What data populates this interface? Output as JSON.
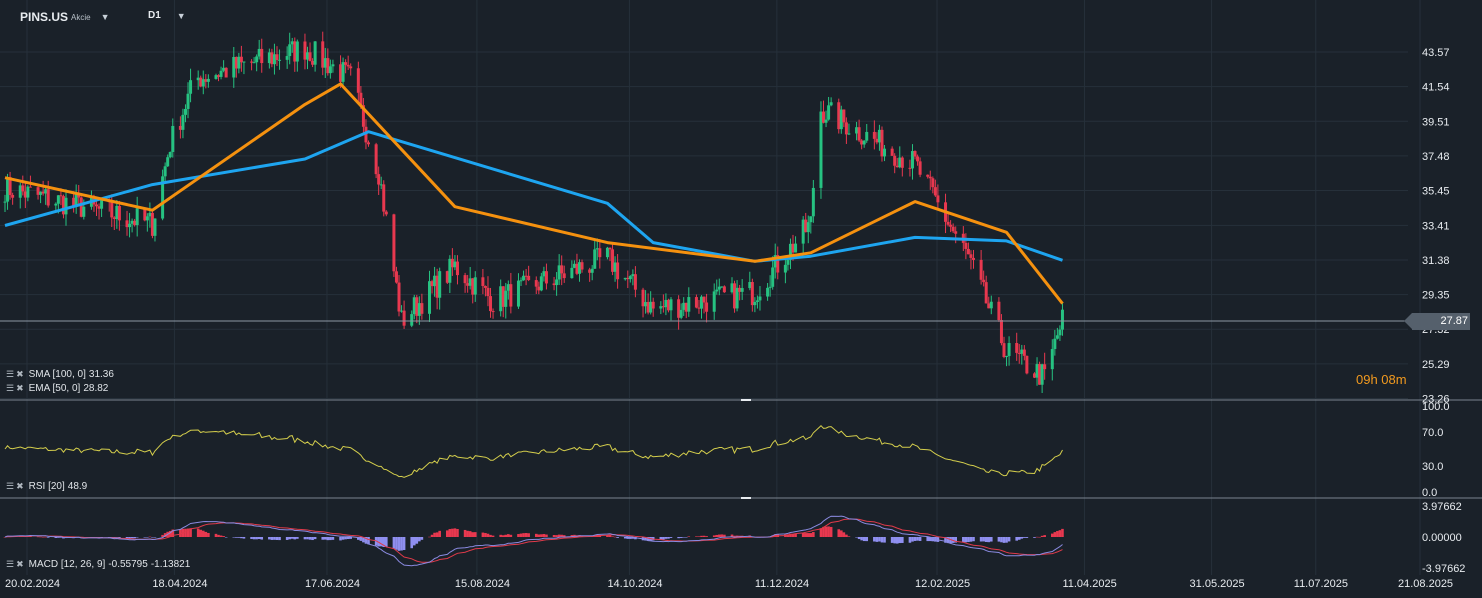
{
  "header": {
    "symbol": "PINS.US",
    "instrument_type": "Akcie",
    "timeframe": "D1"
  },
  "price_axis": {
    "labels": [
      "43.57",
      "41.54",
      "39.51",
      "37.48",
      "35.45",
      "33.41",
      "31.38",
      "29.35",
      "27.32",
      "25.29",
      "23.26"
    ],
    "current_price": "27.87",
    "candle_timer": "09h 08m"
  },
  "indicators": {
    "sma": {
      "label": "SMA [100, 0]",
      "value": "31.36",
      "color": "#1ea5f0"
    },
    "ema": {
      "label": "EMA [50, 0]",
      "value": "28.82",
      "color": "#f5910f"
    },
    "rsi": {
      "label": "RSI [20]",
      "value": "48.9",
      "color": "#d4ce4c",
      "levels": [
        "100.0",
        "70.0",
        "30.0",
        "0.0"
      ]
    },
    "macd": {
      "label": "MACD [12, 26, 9]",
      "value1": "-0.55795",
      "value2": "-1.13821",
      "levels": [
        "3.97662",
        "0.00000",
        "-3.97662"
      ]
    }
  },
  "time_axis": [
    "20.02.2024",
    "18.04.2024",
    "17.06.2024",
    "15.08.2024",
    "14.10.2024",
    "11.12.2024",
    "12.02.2025",
    "11.04.2025",
    "31.05.2025",
    "11.07.2025",
    "21.08.2025"
  ],
  "colors": {
    "background": "#1a2129",
    "up_candle": "#26c281",
    "down_candle": "#e8384f",
    "grid": "#26303a",
    "sma": "#1ea5f0",
    "ema": "#f5910f",
    "rsi": "#d4ce4c",
    "macd_signal": "#e03a4a",
    "macd_line": "#8a8ae0",
    "macd_hist_pos": "#e8384f",
    "macd_hist_neg": "#8f8ff0"
  },
  "chart_data": {
    "type": "candlestick",
    "date_range": [
      "20.02.2024",
      "11.04.2025"
    ],
    "close_path": [
      [
        "20.02.2024",
        35.6
      ],
      [
        "18.04.2024",
        33.5
      ],
      [
        "25.04.2024",
        38.2
      ],
      [
        "05.05.2024",
        42.0
      ],
      [
        "17.06.2024",
        43.8
      ],
      [
        "05.07.2024",
        42.0
      ],
      [
        "16.07.2024",
        36.6
      ],
      [
        "25.07.2024",
        27.8
      ],
      [
        "15.08.2024",
        31.0
      ],
      [
        "30.08.2024",
        29.0
      ],
      [
        "14.10.2024",
        31.5
      ],
      [
        "01.11.2024",
        28.5
      ],
      [
        "11.12.2024",
        29.5
      ],
      [
        "02.01.2025",
        33.5
      ],
      [
        "05.01.2025",
        40.3
      ],
      [
        "12.02.2025",
        37.0
      ],
      [
        "05.03.2025",
        31.5
      ],
      [
        "20.03.2025",
        26.0
      ],
      [
        "04.04.2025",
        24.5
      ],
      [
        "11.04.2025",
        27.87
      ]
    ],
    "sma_path": [
      [
        "20.02.2024",
        33.4
      ],
      [
        "18.04.2024",
        35.8
      ],
      [
        "17.06.2024",
        37.3
      ],
      [
        "12.07.2024",
        38.9
      ],
      [
        "14.10.2024",
        34.7
      ],
      [
        "01.11.2024",
        32.4
      ],
      [
        "11.12.2024",
        31.3
      ],
      [
        "02.01.2025",
        31.6
      ],
      [
        "12.02.2025",
        32.7
      ],
      [
        "20.03.2025",
        32.5
      ],
      [
        "11.04.2025",
        31.36
      ]
    ],
    "ema_path": [
      [
        "20.02.2024",
        36.2
      ],
      [
        "18.04.2024",
        34.3
      ],
      [
        "17.06.2024",
        40.5
      ],
      [
        "01.07.2024",
        41.7
      ],
      [
        "15.08.2024",
        34.5
      ],
      [
        "14.10.2024",
        32.4
      ],
      [
        "11.12.2024",
        31.3
      ],
      [
        "02.01.2025",
        31.8
      ],
      [
        "12.02.2025",
        34.8
      ],
      [
        "20.03.2025",
        33.0
      ],
      [
        "11.04.2025",
        28.82
      ]
    ]
  }
}
